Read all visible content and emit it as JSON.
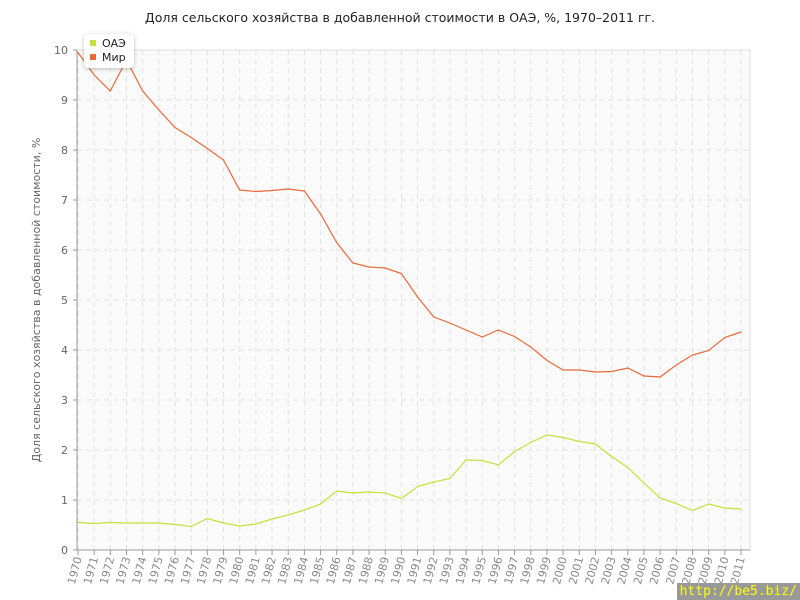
{
  "chart_data": {
    "type": "line",
    "title": "Доля сельского хозяйства в добавленной стоимости в ОАЭ, %, 1970–2011 гг.",
    "ylabel": "Доля сельского хозяйства в добавленной стоимости, %",
    "xlabel": "",
    "ylim": [
      0,
      10
    ],
    "yticks": [
      "0",
      "1",
      "2",
      "3",
      "4",
      "5",
      "6",
      "7",
      "8",
      "9",
      "10"
    ],
    "grid": true,
    "legend_position": "top-left",
    "x": [
      "1970",
      "1971",
      "1972",
      "1973",
      "1974",
      "1975",
      "1976",
      "1977",
      "1978",
      "1979",
      "1980",
      "1981",
      "1982",
      "1983",
      "1984",
      "1985",
      "1986",
      "1987",
      "1988",
      "1989",
      "1990",
      "1991",
      "1992",
      "1993",
      "1994",
      "1995",
      "1996",
      "1997",
      "1998",
      "1999",
      "2000",
      "2001",
      "2002",
      "2003",
      "2004",
      "2005",
      "2006",
      "2007",
      "2008",
      "2009",
      "2010",
      "2011"
    ],
    "series": [
      {
        "name": "ОАЭ",
        "color": "#c5e03a",
        "values": [
          0.55,
          0.53,
          0.55,
          0.54,
          0.54,
          0.54,
          0.51,
          0.47,
          0.63,
          0.54,
          0.48,
          0.52,
          0.62,
          0.7,
          0.8,
          0.92,
          1.18,
          1.14,
          1.16,
          1.14,
          1.03,
          1.27,
          1.36,
          1.43,
          1.8,
          1.79,
          1.7,
          1.97,
          2.15,
          2.3,
          2.25,
          2.17,
          2.12,
          1.87,
          1.65,
          1.34,
          1.04,
          0.93,
          0.79,
          0.92,
          0.84,
          0.82
        ]
      },
      {
        "name": "Мир",
        "color": "#e8693a",
        "values": [
          9.95,
          9.5,
          9.18,
          9.8,
          9.18,
          8.8,
          8.45,
          8.25,
          8.03,
          7.8,
          7.2,
          7.17,
          7.19,
          7.22,
          7.18,
          6.72,
          6.15,
          5.74,
          5.66,
          5.64,
          5.53,
          5.06,
          4.66,
          4.54,
          4.4,
          4.26,
          4.4,
          4.27,
          4.06,
          3.79,
          3.6,
          3.6,
          3.56,
          3.57,
          3.64,
          3.48,
          3.46,
          3.7,
          3.9,
          3.99,
          4.25,
          4.36
        ]
      }
    ]
  },
  "watermark": "http://be5.biz/"
}
